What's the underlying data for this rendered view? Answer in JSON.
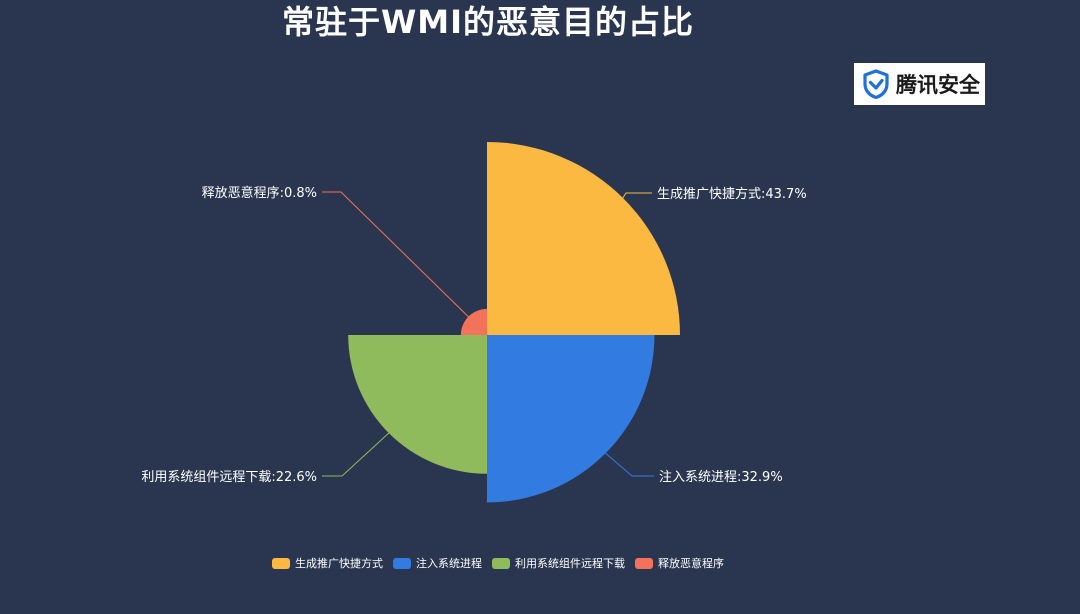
{
  "title": "常驻于WMI的恶意目的占比",
  "brand": {
    "name": "腾讯安全",
    "icon": "tencent-security-shield-icon",
    "color": "#1e6fe0"
  },
  "chart_data": {
    "type": "pie",
    "subtype": "nightingale-rose",
    "categories": [
      "生成推广快捷方式",
      "注入系统进程",
      "利用系统组件远程下载",
      "释放恶意程序"
    ],
    "values": [
      43.7,
      32.9,
      22.6,
      0.8
    ],
    "unit": "%",
    "colors": [
      "#fbb942",
      "#327be0",
      "#8fbb5c",
      "#f2735a"
    ],
    "labels": [
      "生成推广快捷方式:43.7%",
      "注入系统进程:32.9%",
      "利用系统组件远程下载:22.6%",
      "释放恶意程序:0.8%"
    ],
    "legend_position": "bottom"
  }
}
